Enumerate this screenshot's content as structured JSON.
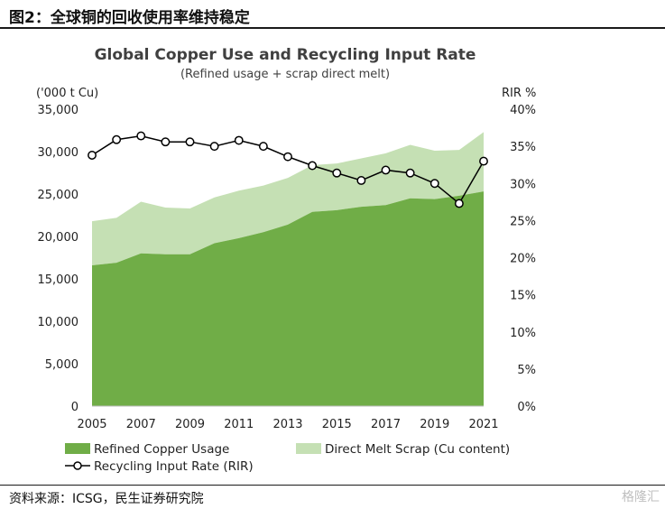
{
  "figure": {
    "title": "图2：全球铜的回收使用率维持稳定",
    "source": "资料来源：ICSG，民生证券研究院",
    "watermark": "格隆汇"
  },
  "chart_data": {
    "type": "area",
    "title": "Global Copper Use and Recycling Input Rate",
    "subtitle": "(Refined usage + scrap direct melt)",
    "y_left_label": "('000 t Cu)",
    "y_right_label": "RIR %",
    "x": [
      2005,
      2006,
      2007,
      2008,
      2009,
      2010,
      2011,
      2012,
      2013,
      2014,
      2015,
      2016,
      2017,
      2018,
      2019,
      2020,
      2021
    ],
    "x_ticks": [
      "2005",
      "2007",
      "2009",
      "2011",
      "2013",
      "2015",
      "2017",
      "2019",
      "2021"
    ],
    "y_left_ticks": [
      "0",
      "5,000",
      "10,000",
      "15,000",
      "20,000",
      "25,000",
      "30,000",
      "35,000"
    ],
    "y_right_ticks": [
      "0%",
      "5%",
      "10%",
      "15%",
      "20%",
      "25%",
      "30%",
      "35%",
      "40%"
    ],
    "ylim_left": [
      0,
      35000
    ],
    "ylim_right": [
      0,
      40
    ],
    "stacked": true,
    "series": [
      {
        "name": "Refined Copper Usage",
        "axis": "left",
        "kind": "area",
        "color": "#70ad47",
        "values": [
          16600,
          16900,
          18000,
          17900,
          17900,
          19200,
          19800,
          20500,
          21400,
          22900,
          23100,
          23500,
          23700,
          24500,
          24400,
          24800,
          25300
        ]
      },
      {
        "name": "Direct Melt Scrap (Cu content)",
        "axis": "left",
        "kind": "area",
        "color": "#c5e0b4",
        "values": [
          5200,
          5300,
          6100,
          5500,
          5400,
          5400,
          5600,
          5500,
          5500,
          5500,
          5500,
          5700,
          6100,
          6300,
          5700,
          5400,
          7000
        ]
      },
      {
        "name": "Recycling Input Rate (RIR)",
        "axis": "right",
        "kind": "line",
        "color": "#000000",
        "values": [
          33.8,
          35.9,
          36.4,
          35.6,
          35.6,
          35.0,
          35.8,
          35.0,
          33.6,
          32.4,
          31.4,
          30.4,
          31.8,
          31.4,
          30.0,
          27.3,
          33.0
        ]
      }
    ],
    "legend_position": "bottom",
    "grid": false
  }
}
